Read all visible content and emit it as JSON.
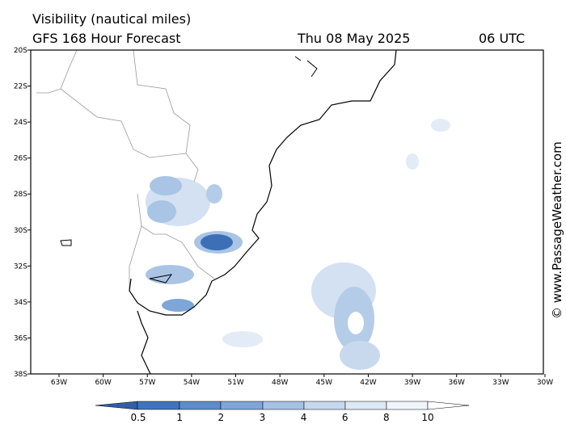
{
  "header": {
    "title": "Visibility (nautical miles)",
    "subtitle": "GFS 168 Hour Forecast",
    "date": "Thu 08 May 2025",
    "time": "06 UTC"
  },
  "map": {
    "lat_labels": [
      "20S",
      "22S",
      "24S",
      "26S",
      "28S",
      "30S",
      "32S",
      "34S",
      "36S",
      "38S"
    ],
    "lon_labels": [
      "63W",
      "60W",
      "57W",
      "54W",
      "51W",
      "48W",
      "45W",
      "42W",
      "39W",
      "36W",
      "33W",
      "30W"
    ]
  },
  "legend": {
    "labels": [
      "0.5",
      "1",
      "2",
      "3",
      "4",
      "6",
      "8",
      "10"
    ]
  },
  "watermark": "© www.PassageWeather.com"
}
